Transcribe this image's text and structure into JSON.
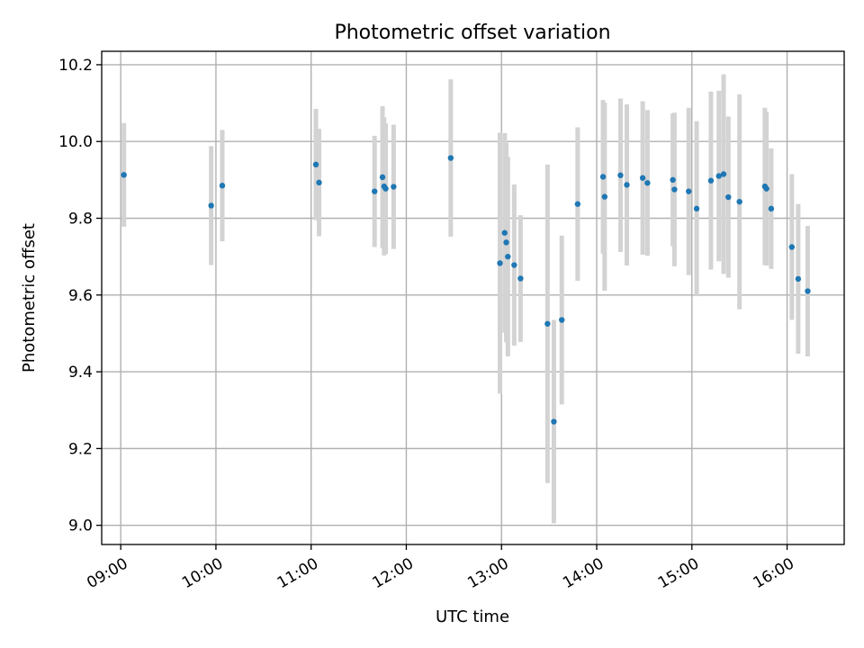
{
  "chart_data": {
    "type": "scatter",
    "title": "Photometric offset variation",
    "xlabel": "UTC time",
    "ylabel": "Photometric offset",
    "xlim": [
      "08:48",
      "16:36"
    ],
    "ylim": [
      8.95,
      10.235
    ],
    "x_ticks": [
      "09:00",
      "10:00",
      "11:00",
      "12:00",
      "13:00",
      "14:00",
      "15:00",
      "16:00"
    ],
    "y_ticks": [
      9.0,
      9.2,
      9.4,
      9.6,
      9.8,
      10.0,
      10.2
    ],
    "grid": true,
    "colors": {
      "points": "#1f77b4",
      "errorbars": "#d3d3d3"
    },
    "series": [
      {
        "x": [
          "09:02",
          "09:57",
          "10:04",
          "11:03",
          "11:05",
          "11:40",
          "11:45",
          "11:46",
          "11:47",
          "11:52",
          "12:28",
          "12:59",
          "13:02",
          "13:03",
          "13:04",
          "13:08",
          "13:12",
          "13:29",
          "13:33",
          "13:38",
          "13:48",
          "14:04",
          "14:05",
          "14:15",
          "14:19",
          "14:29",
          "14:32",
          "14:48",
          "14:49",
          "14:58",
          "15:03",
          "15:12",
          "15:17",
          "15:20",
          "15:23",
          "15:30",
          "15:46",
          "15:47",
          "15:50",
          "16:03",
          "16:07",
          "16:13"
        ],
        "y": [
          9.913,
          9.833,
          9.885,
          9.94,
          9.893,
          9.87,
          9.907,
          9.883,
          9.877,
          9.882,
          9.957,
          9.683,
          9.762,
          9.737,
          9.7,
          9.678,
          9.643,
          9.525,
          9.27,
          9.535,
          9.837,
          9.908,
          9.856,
          9.912,
          9.887,
          9.905,
          9.892,
          9.9,
          9.875,
          9.87,
          9.825,
          9.898,
          9.91,
          9.915,
          9.855,
          9.843,
          9.883,
          9.877,
          9.825,
          9.725,
          9.642,
          9.61
        ],
        "yerr": [
          0.135,
          0.155,
          0.145,
          0.145,
          0.14,
          0.145,
          0.185,
          0.18,
          0.17,
          0.162,
          0.205,
          0.34,
          0.26,
          0.26,
          0.26,
          0.21,
          0.165,
          0.415,
          0.265,
          0.22,
          0.2,
          0.2,
          0.245,
          0.2,
          0.21,
          0.2,
          0.19,
          0.173,
          0.2,
          0.218,
          0.228,
          0.232,
          0.222,
          0.26,
          0.21,
          0.28,
          0.205,
          0.2,
          0.157,
          0.19,
          0.195,
          0.17
        ]
      }
    ]
  }
}
